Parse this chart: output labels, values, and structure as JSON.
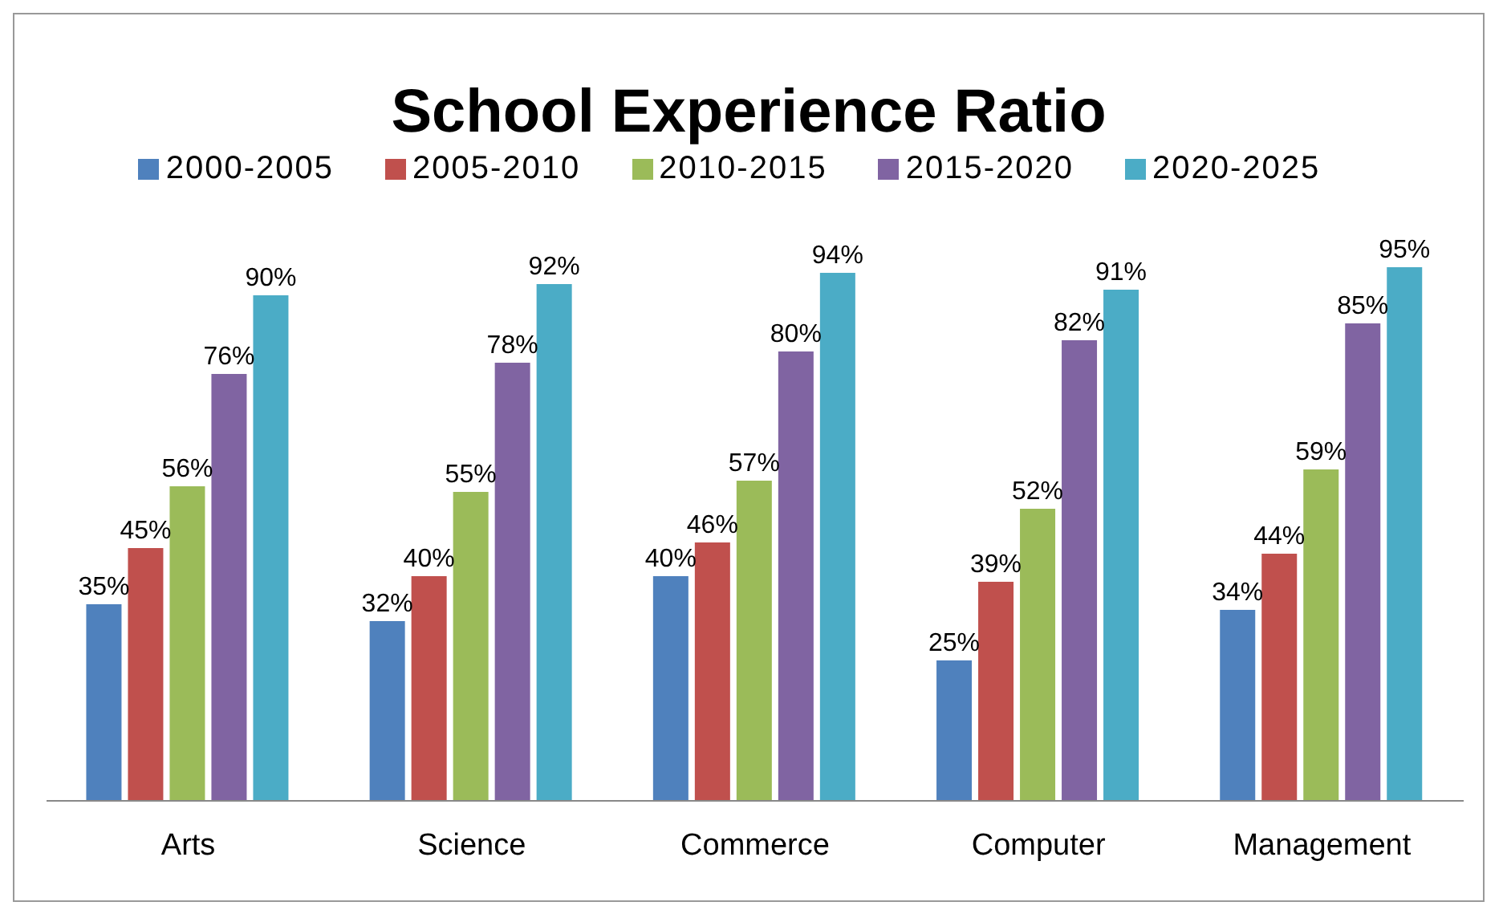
{
  "chart_data": {
    "type": "bar",
    "title": "School Experience Ratio",
    "categories": [
      "Arts",
      "Science",
      "Commerce",
      "Computer",
      "Management"
    ],
    "series": [
      {
        "name": "2000-2005",
        "color": "#4f81bd",
        "values": [
          35,
          32,
          40,
          25,
          34
        ],
        "value_labels": [
          "35%",
          "32%",
          "40%",
          "25%",
          "34%"
        ]
      },
      {
        "name": "2005-2010",
        "color": "#c0504d",
        "values": [
          45,
          40,
          46,
          39,
          44
        ],
        "value_labels": [
          "45%",
          "40%",
          "46%",
          "39%",
          "44%"
        ]
      },
      {
        "name": "2010-2015",
        "color": "#9bbb59",
        "values": [
          56,
          55,
          57,
          52,
          59
        ],
        "value_labels": [
          "56%",
          "55%",
          "57%",
          "52%",
          "59%"
        ]
      },
      {
        "name": "2015-2020",
        "color": "#8064a2",
        "values": [
          76,
          78,
          80,
          82,
          85
        ],
        "value_labels": [
          "76%",
          "78%",
          "80%",
          "82%",
          "85%"
        ]
      },
      {
        "name": "2020-2025",
        "color": "#4bacc6",
        "values": [
          90,
          92,
          94,
          91,
          95
        ],
        "value_labels": [
          "90%",
          "92%",
          "94%",
          "91%",
          "95%"
        ]
      }
    ],
    "tick_labels": "x",
    "legend": "top",
    "grid": false
  }
}
